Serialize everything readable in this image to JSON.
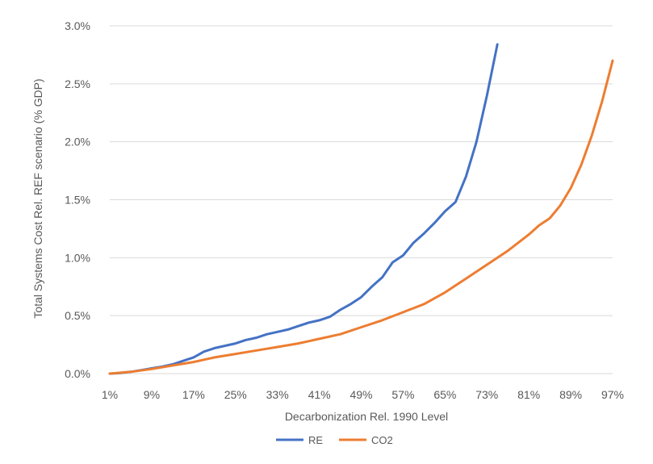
{
  "chart_data": {
    "type": "line",
    "title": "",
    "xlabel": "Decarbonization Rel. 1990 Level",
    "ylabel": "Total Systems Cost Rel. REF scenario (% GDP)",
    "ylim": [
      0,
      3.0
    ],
    "xlim": [
      1,
      97
    ],
    "grid": true,
    "legend_position": "bottom",
    "x_ticks": [
      "1%",
      "9%",
      "17%",
      "25%",
      "33%",
      "41%",
      "49%",
      "57%",
      "65%",
      "73%",
      "81%",
      "89%",
      "97%"
    ],
    "y_ticks": [
      "0.0%",
      "0.5%",
      "1.0%",
      "1.5%",
      "2.0%",
      "2.5%",
      "3.0%"
    ],
    "series": [
      {
        "name": "RE",
        "color": "#4472C4",
        "x": [
          1,
          3,
          5,
          7,
          9,
          11,
          13,
          15,
          17,
          19,
          21,
          23,
          25,
          27,
          29,
          31,
          33,
          35,
          37,
          39,
          41,
          43,
          45,
          47,
          49,
          51,
          53,
          55,
          57,
          59,
          61,
          63,
          65,
          67,
          69,
          71,
          73,
          75
        ],
        "y": [
          0.0,
          0.005,
          0.015,
          0.03,
          0.045,
          0.06,
          0.08,
          0.11,
          0.14,
          0.19,
          0.22,
          0.24,
          0.26,
          0.29,
          0.31,
          0.34,
          0.36,
          0.38,
          0.41,
          0.44,
          0.46,
          0.49,
          0.55,
          0.6,
          0.66,
          0.75,
          0.83,
          0.96,
          1.02,
          1.13,
          1.21,
          1.3,
          1.4,
          1.48,
          1.7,
          2.0,
          2.4,
          2.84
        ]
      },
      {
        "name": "CO2",
        "color": "#ED7D31",
        "x": [
          1,
          5,
          9,
          13,
          17,
          21,
          25,
          29,
          33,
          37,
          41,
          45,
          49,
          53,
          57,
          61,
          65,
          69,
          73,
          77,
          79,
          81,
          83,
          85,
          87,
          89,
          91,
          93,
          95,
          97
        ],
        "y": [
          0.0,
          0.015,
          0.04,
          0.07,
          0.1,
          0.14,
          0.17,
          0.2,
          0.23,
          0.26,
          0.3,
          0.34,
          0.4,
          0.46,
          0.53,
          0.6,
          0.7,
          0.82,
          0.94,
          1.06,
          1.13,
          1.2,
          1.28,
          1.34,
          1.45,
          1.6,
          1.8,
          2.05,
          2.35,
          2.7
        ]
      }
    ]
  }
}
